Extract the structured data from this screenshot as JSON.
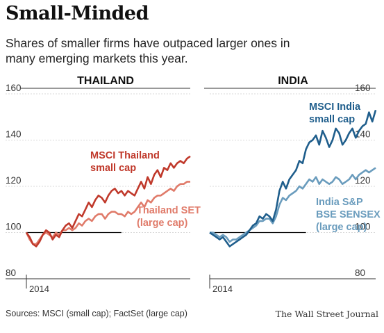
{
  "title": "Small-Minded",
  "subtitle": "Shares of smaller firms have outpaced larger ones in many emerging markets this year.",
  "sources": "Sources: MSCI (small cap); FactSet (large cap)",
  "credit": "The Wall Street Journal",
  "colors": {
    "thailand_small": "#c0392b",
    "thailand_large": "#e07b6a",
    "india_small": "#1f5e8c",
    "india_large": "#6a9cbd",
    "baseline": "#000000",
    "grid": "#cccccc"
  },
  "chart_data": [
    {
      "type": "line",
      "title": "THAILAND",
      "y_ticks": [
        80,
        100,
        120,
        140,
        160
      ],
      "ylim": [
        80,
        160
      ],
      "x_start_label": "2014",
      "baseline": 100,
      "grid": "horizontal",
      "series": [
        {
          "name": "MSCI Thailand small cap",
          "color": "#c0392b",
          "values": [
            100,
            98,
            95,
            94,
            96,
            99,
            101,
            100,
            97,
            99,
            98,
            101,
            103,
            104,
            102,
            105,
            108,
            107,
            110,
            113,
            111,
            114,
            116,
            115,
            113,
            116,
            118,
            119,
            117,
            118,
            116,
            118,
            117,
            116,
            119,
            122,
            119,
            124,
            121,
            125,
            127,
            124,
            128,
            127,
            130,
            128,
            130,
            131,
            130,
            132,
            133
          ]
        },
        {
          "name": "Thailand SET (large cap)",
          "color": "#e07b6a",
          "values": [
            100,
            97,
            95,
            95,
            97,
            99,
            100,
            99,
            98,
            100,
            99,
            101,
            101,
            102,
            101,
            102,
            104,
            103,
            105,
            106,
            105,
            107,
            108,
            108,
            106,
            108,
            109,
            109,
            108,
            108,
            107,
            109,
            108,
            109,
            111,
            113,
            111,
            114,
            113,
            115,
            116,
            116,
            117,
            118,
            119,
            118,
            120,
            121,
            121,
            122,
            122
          ]
        }
      ]
    },
    {
      "type": "line",
      "title": "INDIA",
      "y_ticks": [
        80,
        100,
        120,
        140,
        160
      ],
      "ylim": [
        80,
        160
      ],
      "x_start_label": "2014",
      "baseline": 100,
      "grid": "horizontal",
      "series": [
        {
          "name": "MSCI India small cap",
          "color": "#1f5e8c",
          "values": [
            100,
            99,
            98,
            97,
            98,
            96,
            94,
            95,
            96,
            97,
            98,
            99,
            101,
            103,
            104,
            107,
            106,
            108,
            107,
            105,
            110,
            118,
            122,
            119,
            123,
            125,
            127,
            131,
            130,
            136,
            139,
            140,
            142,
            138,
            144,
            141,
            137,
            140,
            145,
            143,
            138,
            140,
            143,
            145,
            141,
            144,
            146,
            147,
            152,
            148,
            153
          ]
        },
        {
          "name": "India S&P BSE SENSEX (large cap)",
          "color": "#6a9cbd",
          "values": [
            100,
            100,
            99,
            98,
            99,
            98,
            96,
            97,
            97,
            98,
            99,
            100,
            101,
            102,
            103,
            105,
            105,
            106,
            106,
            104,
            107,
            112,
            115,
            114,
            116,
            117,
            118,
            120,
            119,
            121,
            123,
            122,
            124,
            121,
            123,
            122,
            121,
            122,
            124,
            123,
            121,
            122,
            123,
            125,
            123,
            125,
            126,
            127,
            126,
            127,
            128
          ]
        }
      ]
    }
  ],
  "annotations": {
    "thailand_small": [
      "MSCI Thailand",
      "small cap"
    ],
    "thailand_large": [
      "Thailand SET",
      "(large cap)"
    ],
    "india_small": [
      "MSCI India",
      "small cap"
    ],
    "india_large": [
      "India S&P",
      "BSE SENSEX",
      "(large cap)"
    ]
  }
}
